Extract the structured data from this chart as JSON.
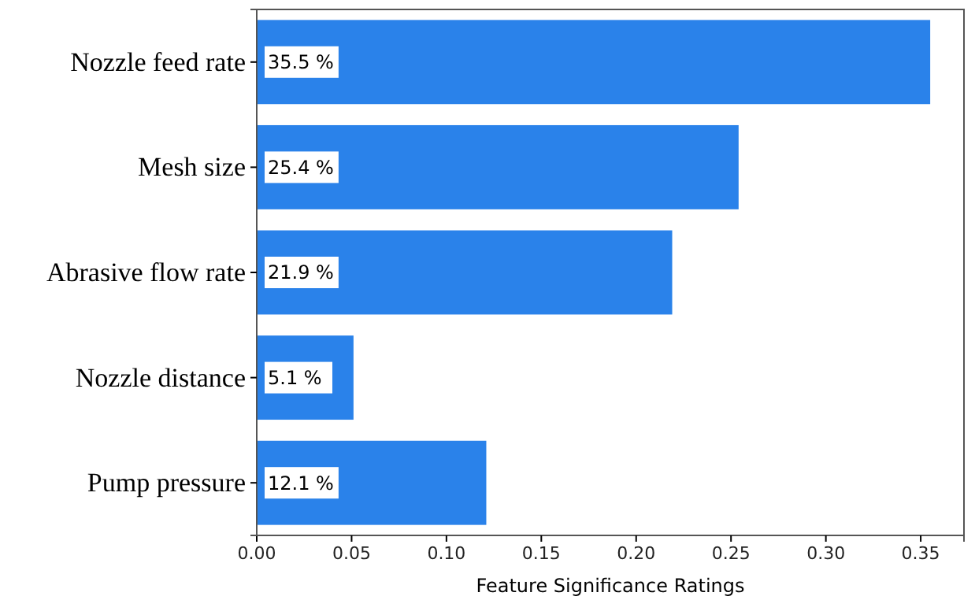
{
  "chart_data": {
    "type": "bar",
    "orientation": "horizontal",
    "xlabel": "Feature Significance Ratings",
    "categories": [
      "Nozzle feed rate",
      "Mesh size",
      "Abrasive flow rate",
      "Nozzle distance",
      "Pump pressure"
    ],
    "values": [
      0.355,
      0.254,
      0.219,
      0.051,
      0.121
    ],
    "value_labels": [
      "35.5 %",
      "25.4 %",
      "21.9 %",
      "5.1 %",
      "12.1 %"
    ],
    "color": "#2a82ea",
    "xlim": [
      0,
      0.3728
    ],
    "xticks": [
      {
        "value": 0,
        "label": "0.00"
      },
      {
        "value": 0.05,
        "label": "0.05"
      },
      {
        "value": 0.1,
        "label": "0.10"
      },
      {
        "value": 0.15,
        "label": "0.15"
      },
      {
        "value": 0.2,
        "label": "0.20"
      },
      {
        "value": 0.25,
        "label": "0.25"
      },
      {
        "value": 0.3,
        "label": "0.30"
      },
      {
        "value": 0.35,
        "label": "0.35"
      }
    ],
    "grid": false
  }
}
